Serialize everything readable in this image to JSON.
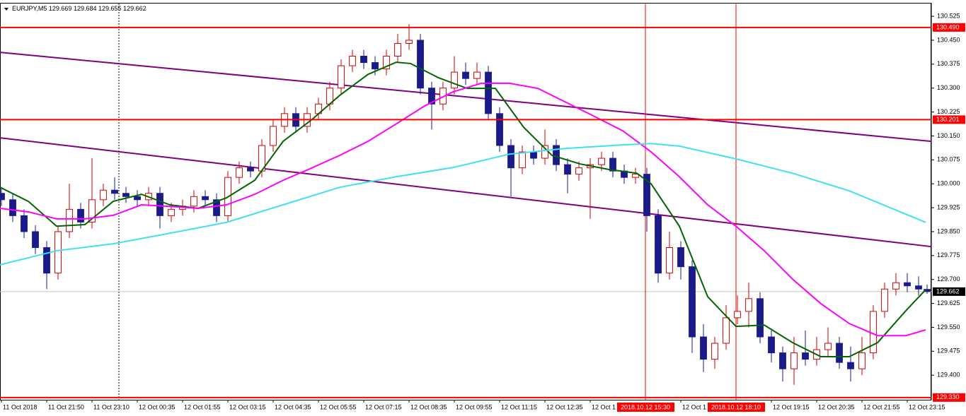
{
  "chart_data": {
    "type": "candlestick",
    "symbol": "EURJPY,M5",
    "xlim": [
      0,
      329
    ],
    "ylim": [
      129.323,
      130.565
    ],
    "yticks": [
      130.525,
      {
        "value": 130.45,
        "label": "130.450"
      },
      130.375,
      {
        "value": 130.3,
        "label": "130.300"
      },
      130.225,
      {
        "value": 130.15,
        "label": "130.150"
      },
      130.075,
      {
        "value": 130,
        "label": "130.000"
      },
      129.925,
      {
        "value": 129.85,
        "label": "129.850"
      },
      129.775,
      {
        "value": 129.7,
        "label": "129.700"
      },
      129.625,
      {
        "value": 129.55,
        "label": "129.550"
      },
      129.475,
      {
        "value": 129.4,
        "label": "129.400"
      }
    ],
    "xticks": [
      {
        "value": 0,
        "label": "11 Oct 2018"
      },
      {
        "value": 16,
        "label": "11 Oct 21:50"
      },
      {
        "value": 32,
        "label": "11 Oct 23:10"
      },
      {
        "value": 48,
        "label": "12 Oct 00:35"
      },
      {
        "value": 64,
        "label": "12 Oct 01:55"
      },
      {
        "value": 80,
        "label": "12 Oct 03:15"
      },
      {
        "value": 96,
        "label": "12 Oct 04:35"
      },
      {
        "value": 112,
        "label": "12 Oct 05:55"
      },
      {
        "value": 128,
        "label": "12 Oct 07:15"
      },
      {
        "value": 144,
        "label": "12 Oct 08:35"
      },
      {
        "value": 160,
        "label": "12 Oct 09:55"
      },
      {
        "value": 176,
        "label": "12 Oct 11:15"
      },
      {
        "value": 192,
        "label": "12 Oct 12:35"
      },
      {
        "value": 208,
        "label": "12 Oct 1"
      },
      {
        "value": 240,
        "label": "12 Oct 1"
      },
      {
        "value": 272,
        "label": "12 Oct 19:15"
      },
      {
        "value": 288,
        "label": "12 Oct 20:35"
      },
      {
        "value": 304,
        "label": "12 Oct 21:55"
      },
      {
        "value": 320,
        "label": "12 Oct 23:15"
      }
    ],
    "bull_color": "#d00000",
    "bear_color": "#1a1a8c",
    "candles": {
      "x": [
        0,
        4,
        8,
        12,
        16,
        20,
        24,
        28,
        32,
        36,
        40,
        44,
        48,
        52,
        56,
        60,
        64,
        68,
        72,
        76,
        80,
        84,
        88,
        92,
        96,
        100,
        104,
        108,
        112,
        116,
        120,
        124,
        128,
        132,
        136,
        140,
        144,
        148,
        152,
        156,
        160,
        164,
        168,
        172,
        176,
        180,
        184,
        188,
        192,
        196,
        200,
        204,
        208,
        212,
        216,
        220,
        224,
        228,
        232,
        236,
        240,
        244,
        248,
        252,
        256,
        260,
        264,
        268,
        272,
        276,
        280,
        284,
        288,
        292,
        296,
        300,
        304,
        308,
        312,
        316,
        320,
        324,
        327
      ],
      "open": [
        129.97,
        129.95,
        129.9,
        129.85,
        129.8,
        129.72,
        129.85,
        129.92,
        129.88,
        129.95,
        129.98,
        129.97,
        129.96,
        129.95,
        129.97,
        129.9,
        129.92,
        129.93,
        129.96,
        129.95,
        129.9,
        130.02,
        130.05,
        130.04,
        130.12,
        130.18,
        130.22,
        130.18,
        130.22,
        130.25,
        130.3,
        130.37,
        130.4,
        130.38,
        130.36,
        130.4,
        130.44,
        130.45,
        130.3,
        130.25,
        130.3,
        130.35,
        130.33,
        130.35,
        130.22,
        130.12,
        130.05,
        130.1,
        130.08,
        130.12,
        130.06,
        130.03,
        130.05,
        130.06,
        130.08,
        130.04,
        130.02,
        130.03,
        129.9,
        129.72,
        129.8,
        129.74,
        129.52,
        129.45,
        129.5,
        129.58,
        129.6,
        129.64,
        129.52,
        129.47,
        129.42,
        129.47,
        129.45,
        129.48,
        129.5,
        129.44,
        129.42,
        129.47,
        129.6,
        129.67,
        129.69,
        129.68,
        129.669
      ],
      "high": [
        129.99,
        129.97,
        129.92,
        129.87,
        129.82,
        129.87,
        130.0,
        129.94,
        130.08,
        130.0,
        130.02,
        129.99,
        129.98,
        129.99,
        129.99,
        129.94,
        129.95,
        129.98,
        129.98,
        129.97,
        130.04,
        130.07,
        130.07,
        130.14,
        130.2,
        130.24,
        130.24,
        130.24,
        130.27,
        130.32,
        130.39,
        130.42,
        130.42,
        130.4,
        130.42,
        130.47,
        130.5,
        130.47,
        130.32,
        130.32,
        130.4,
        130.38,
        130.38,
        130.37,
        130.24,
        130.14,
        130.12,
        130.12,
        130.17,
        130.14,
        130.08,
        130.07,
        130.08,
        130.1,
        130.1,
        130.06,
        130.05,
        130.05,
        129.92,
        129.85,
        129.82,
        129.76,
        129.56,
        129.52,
        129.62,
        129.65,
        129.69,
        129.66,
        129.54,
        129.49,
        129.52,
        129.54,
        129.52,
        129.55,
        129.52,
        129.49,
        129.52,
        129.62,
        129.69,
        129.72,
        129.72,
        129.71,
        129.684
      ],
      "low": [
        129.93,
        129.88,
        129.83,
        129.78,
        129.67,
        129.7,
        129.83,
        129.86,
        129.86,
        129.93,
        129.95,
        129.94,
        129.93,
        129.93,
        129.86,
        129.88,
        129.9,
        129.91,
        129.93,
        129.88,
        129.88,
        130.0,
        130.02,
        130.02,
        130.1,
        130.16,
        130.16,
        130.16,
        130.2,
        130.23,
        130.28,
        130.35,
        130.36,
        130.34,
        130.34,
        130.38,
        130.42,
        130.28,
        130.17,
        130.23,
        130.28,
        130.31,
        130.31,
        130.2,
        130.1,
        129.96,
        130.03,
        130.06,
        130.06,
        130.04,
        129.97,
        130.01,
        129.89,
        130.04,
        130.02,
        130.0,
        130.0,
        129.85,
        129.69,
        129.7,
        129.7,
        129.47,
        129.41,
        129.42,
        129.48,
        129.56,
        129.55,
        129.5,
        129.44,
        129.38,
        129.37,
        129.43,
        129.43,
        129.46,
        129.42,
        129.38,
        129.4,
        129.45,
        129.58,
        129.65,
        129.66,
        129.65,
        129.655
      ],
      "close": [
        129.95,
        129.9,
        129.85,
        129.8,
        129.72,
        129.85,
        129.92,
        129.88,
        129.95,
        129.98,
        129.97,
        129.96,
        129.95,
        129.97,
        129.9,
        129.92,
        129.93,
        129.96,
        129.95,
        129.9,
        130.02,
        130.05,
        130.04,
        130.12,
        130.18,
        130.22,
        130.18,
        130.22,
        130.25,
        130.3,
        130.37,
        130.4,
        130.38,
        130.36,
        130.4,
        130.44,
        130.45,
        130.3,
        130.25,
        130.3,
        130.35,
        130.33,
        130.35,
        130.22,
        130.12,
        130.05,
        130.1,
        130.08,
        130.12,
        130.06,
        130.03,
        130.05,
        130.06,
        130.08,
        130.04,
        130.02,
        130.03,
        129.9,
        129.72,
        129.8,
        129.74,
        129.52,
        129.45,
        129.5,
        129.58,
        129.6,
        129.64,
        129.52,
        129.47,
        129.42,
        129.47,
        129.45,
        129.48,
        129.5,
        129.44,
        129.42,
        129.47,
        129.6,
        129.67,
        129.69,
        129.68,
        129.67,
        129.662
      ]
    },
    "series": [
      {
        "color": "#006400",
        "x": [
          0,
          10,
          20,
          30,
          40,
          50,
          60,
          70,
          80,
          90,
          100,
          110,
          120,
          130,
          140,
          145,
          155,
          165,
          175,
          185,
          195,
          205,
          215,
          225,
          230,
          240,
          250,
          260,
          270,
          280,
          290,
          300,
          310,
          320,
          327
        ],
        "values": [
          129.989,
          129.945,
          129.867,
          129.872,
          129.945,
          129.967,
          129.934,
          129.923,
          129.956,
          130.011,
          130.133,
          130.2,
          130.277,
          130.343,
          130.381,
          130.377,
          130.332,
          130.299,
          130.299,
          130.177,
          130.089,
          130.062,
          130.045,
          130.033,
          130.0,
          129.867,
          129.646,
          129.553,
          129.557,
          129.502,
          129.458,
          129.458,
          129.502,
          129.602,
          129.668
        ]
      },
      {
        "color": "#ff00ff",
        "x": [
          0,
          10,
          20,
          30,
          40,
          50,
          60,
          70,
          80,
          90,
          100,
          110,
          120,
          130,
          140,
          150,
          160,
          170,
          180,
          190,
          200,
          210,
          220,
          230,
          240,
          250,
          260,
          270,
          280,
          290,
          300,
          310,
          320,
          327
        ],
        "values": [
          129.923,
          129.912,
          129.89,
          129.89,
          129.901,
          129.934,
          129.929,
          129.923,
          129.934,
          129.967,
          130.011,
          130.049,
          130.089,
          130.133,
          130.188,
          130.244,
          130.288,
          130.315,
          130.315,
          130.299,
          130.255,
          130.211,
          130.166,
          130.1,
          130.022,
          129.934,
          129.867,
          129.79,
          129.701,
          129.624,
          129.562,
          129.524,
          129.524,
          129.542
        ]
      },
      {
        "color": "#40e0f0",
        "x": [
          0,
          20,
          40,
          60,
          80,
          100,
          120,
          140,
          160,
          180,
          200,
          220,
          230,
          240,
          260,
          280,
          300,
          315,
          327
        ],
        "values": [
          129.746,
          129.79,
          129.812,
          129.845,
          129.879,
          129.934,
          129.989,
          130.022,
          130.051,
          130.093,
          130.111,
          130.122,
          130.126,
          130.118,
          130.078,
          130.033,
          129.978,
          129.923,
          129.879
        ]
      }
    ],
    "trend_lines": [
      {
        "color": "#800080",
        "x": [
          0,
          329
        ],
        "values": [
          130.412,
          130.133
        ]
      },
      {
        "color": "#800080",
        "x": [
          0,
          329
        ],
        "values": [
          130.144,
          129.803
        ]
      }
    ],
    "levels": [
      {
        "value": 130.49,
        "label": "130.490"
      },
      130.201,
      {
        "value": 129.33,
        "label": "129.330"
      }
    ],
    "level_color": "#ff0000",
    "current_price": 129.662,
    "time_markers": [
      {
        "value": 228,
        "label": "2018.10.12 15:30"
      },
      {
        "value": 260,
        "label": "2018.10.12 18:10"
      }
    ],
    "crosshair_x": 42
  }
}
